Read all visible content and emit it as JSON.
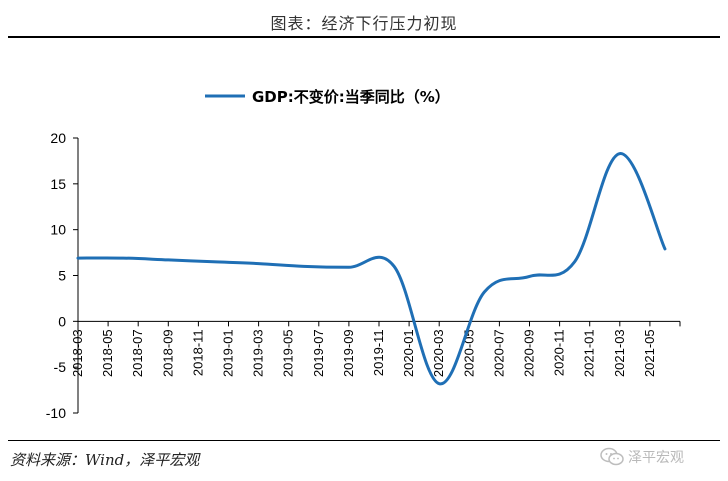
{
  "figure": {
    "title": "图表：经济下行压力初现",
    "source": "资料来源：Wind，泽平宏观",
    "watermark": "泽平宏观"
  },
  "colors": {
    "series": "#1f6fb5",
    "axis": "#000000"
  },
  "chart_data": {
    "type": "line",
    "title": "",
    "xlabel": "",
    "ylabel": "",
    "ylim": [
      -10,
      20
    ],
    "yticks": [
      -10,
      -5,
      0,
      5,
      10,
      15,
      20
    ],
    "grid": false,
    "legend_position": "top-center",
    "x_tick_labels": [
      "2018-03",
      "2018-05",
      "2018-07",
      "2018-09",
      "2018-11",
      "2019-01",
      "2019-03",
      "2019-05",
      "2019-07",
      "2019-09",
      "2019-11",
      "2020-01",
      "2020-03",
      "2020-05",
      "2020-07",
      "2020-09",
      "2020-11",
      "2021-01",
      "2021-03",
      "2021-05"
    ],
    "series": [
      {
        "name": "GDP:不变价:当季同比（%）",
        "x": [
          "2018-03",
          "2018-06",
          "2018-09",
          "2018-12",
          "2019-03",
          "2019-06",
          "2019-09",
          "2019-12",
          "2020-03",
          "2020-06",
          "2020-09",
          "2020-12",
          "2021-03",
          "2021-06"
        ],
        "values": [
          6.9,
          6.9,
          6.7,
          6.5,
          6.3,
          6.0,
          5.9,
          6.0,
          -6.8,
          3.2,
          4.9,
          6.5,
          18.3,
          7.9
        ]
      }
    ]
  }
}
